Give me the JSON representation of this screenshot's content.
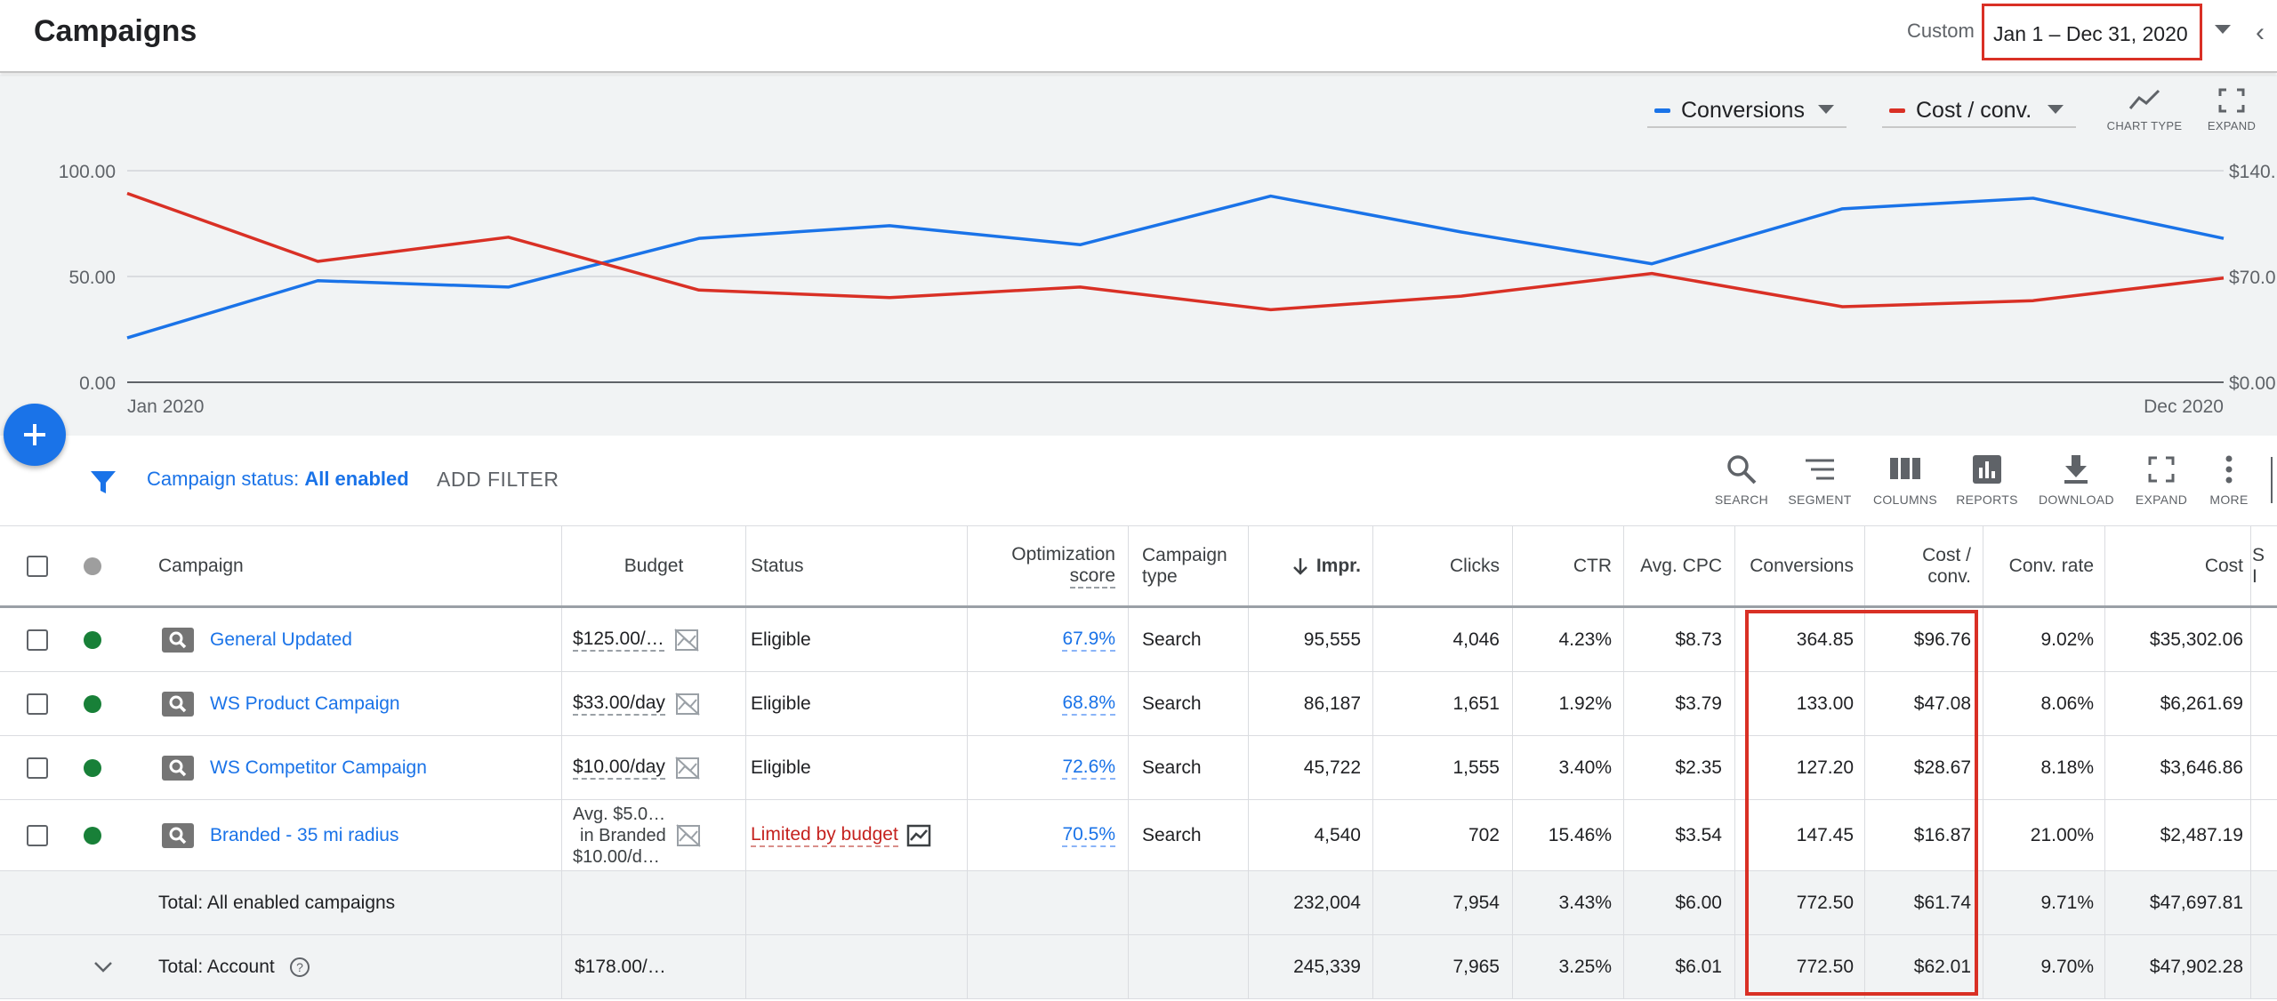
{
  "header": {
    "title": "Campaigns",
    "date_mode": "Custom",
    "date_range": "Jan 1 – Dec 31, 2020"
  },
  "chart": {
    "metric_1": "Conversions",
    "metric_2": "Cost / conv.",
    "tools": {
      "chart_type": "CHART TYPE",
      "expand": "EXPAND"
    },
    "left_ticks": [
      "100.00",
      "50.00",
      "0.00"
    ],
    "right_ticks": [
      "$140.",
      "$70.0",
      "$0.00"
    ],
    "x_start": "Jan 2020",
    "x_end": "Dec 2020",
    "colors": {
      "conversions": "#1a73e8",
      "cost_conv": "#d93025"
    }
  },
  "chart_data": {
    "type": "line",
    "x": [
      "Jan 2020",
      "Feb 2020",
      "Mar 2020",
      "Apr 2020",
      "May 2020",
      "Jun 2020",
      "Jul 2020",
      "Aug 2020",
      "Sep 2020",
      "Oct 2020",
      "Nov 2020",
      "Dec 2020"
    ],
    "series": [
      {
        "name": "Conversions",
        "axis": "left",
        "values": [
          21,
          48,
          45,
          68,
          74,
          65,
          88,
          71,
          56,
          82,
          87,
          68
        ]
      },
      {
        "name": "Cost / conv.",
        "axis": "right",
        "values": [
          125,
          80,
          96,
          61,
          56,
          63,
          48,
          57,
          72,
          50,
          54,
          69
        ]
      }
    ],
    "ylim_left": [
      0,
      100
    ],
    "ylim_right": [
      0,
      140
    ],
    "grid": true
  },
  "filter": {
    "label": "Campaign status:",
    "value": "All enabled",
    "add": "ADD FILTER"
  },
  "toolbar": {
    "search": "SEARCH",
    "segment": "SEGMENT",
    "columns": "COLUMNS",
    "reports": "REPORTS",
    "download": "DOWNLOAD",
    "expand": "EXPAND",
    "more": "MORE"
  },
  "table": {
    "headers": {
      "campaign": "Campaign",
      "budget": "Budget",
      "status": "Status",
      "opt_1": "Optimization",
      "opt_2": "score",
      "type_1": "Campaign",
      "type_2": "type",
      "impr": "Impr.",
      "clicks": "Clicks",
      "ctr": "CTR",
      "cpc": "Avg. CPC",
      "conversions": "Conversions",
      "costconv_1": "Cost /",
      "costconv_2": "conv.",
      "convrate": "Conv. rate",
      "cost": "Cost",
      "extra_1": "S",
      "extra_2": "I"
    },
    "rows": [
      {
        "name": "General Updated",
        "budget": "$125.00/…",
        "status": "Eligible",
        "opt": "67.9%",
        "type": "Search",
        "impr": "95,555",
        "clicks": "4,046",
        "ctr": "4.23%",
        "cpc": "$8.73",
        "conv": "364.85",
        "costconv": "$96.76",
        "convrate": "9.02%",
        "cost": "$35,302.06"
      },
      {
        "name": "WS Product Campaign",
        "budget": "$33.00/day",
        "status": "Eligible",
        "opt": "68.8%",
        "type": "Search",
        "impr": "86,187",
        "clicks": "1,651",
        "ctr": "1.92%",
        "cpc": "$3.79",
        "conv": "133.00",
        "costconv": "$47.08",
        "convrate": "8.06%",
        "cost": "$6,261.69"
      },
      {
        "name": "WS Competitor Campaign",
        "budget": "$10.00/day",
        "status": "Eligible",
        "opt": "72.6%",
        "type": "Search",
        "impr": "45,722",
        "clicks": "1,555",
        "ctr": "3.40%",
        "cpc": "$2.35",
        "conv": "127.20",
        "costconv": "$28.67",
        "convrate": "8.18%",
        "cost": "$3,646.86"
      },
      {
        "name": "Branded - 35 mi radius",
        "budget_1": "Avg. $5.0…",
        "budget_2": "in Branded",
        "budget_3": "$10.00/d…",
        "status": "Limited by budget",
        "opt": "70.5%",
        "type": "Search",
        "impr": "4,540",
        "clicks": "702",
        "ctr": "15.46%",
        "cpc": "$3.54",
        "conv": "147.45",
        "costconv": "$16.87",
        "convrate": "21.00%",
        "cost": "$2,487.19"
      }
    ],
    "totals": [
      {
        "label": "Total: All enabled campaigns",
        "budget": "",
        "impr": "232,004",
        "clicks": "7,954",
        "ctr": "3.43%",
        "cpc": "$6.00",
        "conv": "772.50",
        "costconv": "$61.74",
        "convrate": "9.71%",
        "cost": "$47,697.81"
      },
      {
        "label": "Total: Account",
        "budget": "$178.00/…",
        "impr": "245,339",
        "clicks": "7,965",
        "ctr": "3.25%",
        "cpc": "$6.01",
        "conv": "772.50",
        "costconv": "$62.01",
        "convrate": "9.70%",
        "cost": "$47,902.28"
      }
    ]
  }
}
